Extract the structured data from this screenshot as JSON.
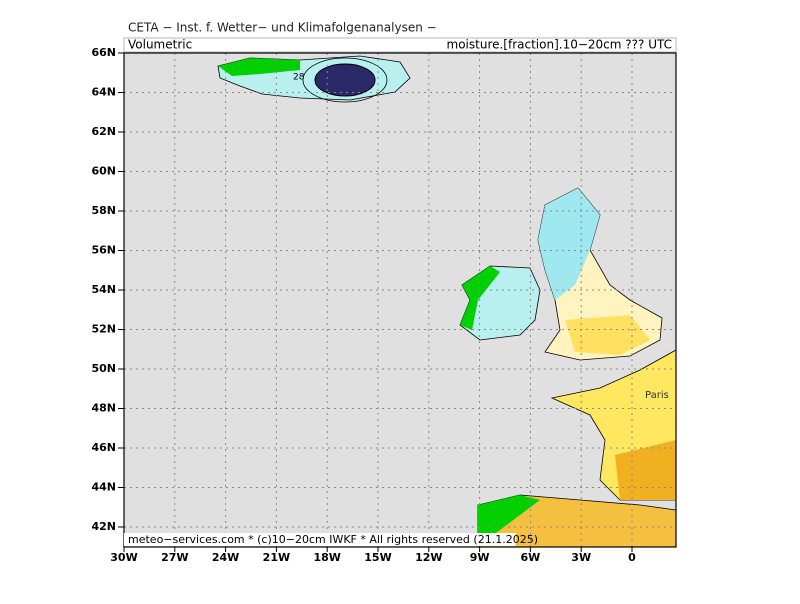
{
  "header": {
    "title": "CETA − Inst. f. Wetter− und Klimafolgenanalysen −",
    "left": "Volumetric",
    "right": "moisture.[fraction].10−20cm ??? UTC"
  },
  "footer": "meteo−services.com * (c)10−20cm IWKF * All rights reserved (21.1.2025)",
  "labels": {
    "contour": "28",
    "city": "Paris"
  },
  "lat_ticks": [
    {
      "value": 66,
      "label": "66N"
    },
    {
      "value": 64,
      "label": "64N"
    },
    {
      "value": 62,
      "label": "62N"
    },
    {
      "value": 60,
      "label": "60N"
    },
    {
      "value": 58,
      "label": "58N"
    },
    {
      "value": 56,
      "label": "56N"
    },
    {
      "value": 54,
      "label": "54N"
    },
    {
      "value": 52,
      "label": "52N"
    },
    {
      "value": 50,
      "label": "50N"
    },
    {
      "value": 48,
      "label": "48N"
    },
    {
      "value": 46,
      "label": "46N"
    },
    {
      "value": 44,
      "label": "44N"
    },
    {
      "value": 42,
      "label": "42N"
    }
  ],
  "lon_ticks": [
    {
      "value": -30,
      "label": "30W"
    },
    {
      "value": -27,
      "label": "27W"
    },
    {
      "value": -24,
      "label": "24W"
    },
    {
      "value": -21,
      "label": "21W"
    },
    {
      "value": -18,
      "label": "18W"
    },
    {
      "value": -15,
      "label": "15W"
    },
    {
      "value": -12,
      "label": "12W"
    },
    {
      "value": -9,
      "label": "9W"
    },
    {
      "value": -6,
      "label": "6W"
    },
    {
      "value": -3,
      "label": "3W"
    },
    0
  ]
}
